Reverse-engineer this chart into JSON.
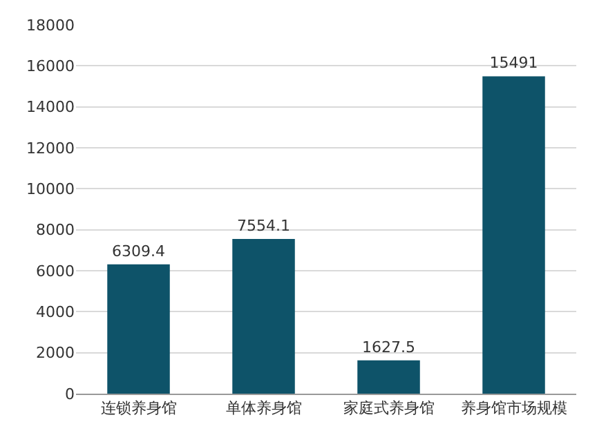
{
  "chart_data": {
    "type": "bar",
    "categories": [
      "连锁养身馆",
      "单体养身馆",
      "家庭式养身馆",
      "养身馆市场规模"
    ],
    "values": [
      6309.4,
      7554.1,
      1627.5,
      15491
    ],
    "color": "#0e5369",
    "ylim": [
      0,
      18000
    ],
    "yticks": [
      0,
      2000,
      4000,
      6000,
      8000,
      10000,
      12000,
      14000,
      16000,
      18000
    ],
    "grid": "y",
    "data_labels": true
  }
}
